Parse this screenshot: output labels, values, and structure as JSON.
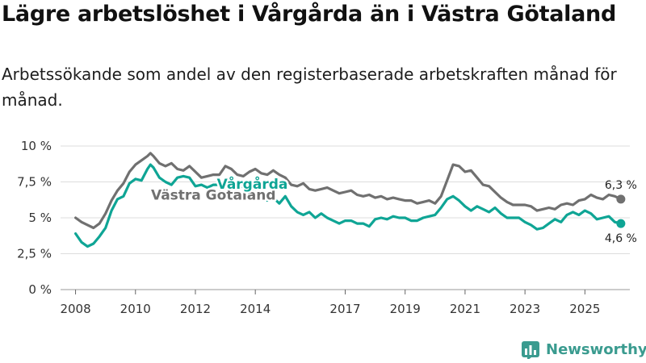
{
  "title": "Lägre arbetslöshet i Vårgårda än i Västra Götaland",
  "subtitle": "Arbetssökande som andel av den registerbaserade arbetskraften månad för månad.",
  "brand": "Newsworthy",
  "colors": {
    "vargarda": "#0fa595",
    "vastra_gotaland": "#707070",
    "grid": "#dddddd",
    "brand": "#3a9b8f"
  },
  "chart_data": {
    "type": "line",
    "unit": "%",
    "ylim": [
      0,
      10
    ],
    "yticks": [
      {
        "value": 0,
        "label": "0 %"
      },
      {
        "value": 2.5,
        "label": "2,5 %"
      },
      {
        "value": 5,
        "label": "5 %"
      },
      {
        "value": 7.5,
        "label": "7,5 %"
      },
      {
        "value": 10,
        "label": "10 %"
      }
    ],
    "xlim": [
      2007.5,
      2026.5
    ],
    "xticks": [
      2008,
      2010,
      2012,
      2014,
      2017,
      2019,
      2021,
      2023,
      2025
    ],
    "grid": true,
    "series": [
      {
        "name": "Västra Götaland",
        "color": "#707070",
        "end_label": "6,3 %",
        "label_at": [
          2012.6,
          6.6
        ],
        "points": [
          [
            2008.0,
            5.0
          ],
          [
            2008.2,
            4.7
          ],
          [
            2008.4,
            4.5
          ],
          [
            2008.6,
            4.3
          ],
          [
            2008.8,
            4.6
          ],
          [
            2009.0,
            5.3
          ],
          [
            2009.2,
            6.2
          ],
          [
            2009.4,
            6.9
          ],
          [
            2009.6,
            7.4
          ],
          [
            2009.8,
            8.2
          ],
          [
            2010.0,
            8.7
          ],
          [
            2010.2,
            9.0
          ],
          [
            2010.4,
            9.3
          ],
          [
            2010.5,
            9.5
          ],
          [
            2010.6,
            9.3
          ],
          [
            2010.8,
            8.8
          ],
          [
            2011.0,
            8.6
          ],
          [
            2011.2,
            8.8
          ],
          [
            2011.4,
            8.4
          ],
          [
            2011.6,
            8.3
          ],
          [
            2011.8,
            8.6
          ],
          [
            2012.0,
            8.2
          ],
          [
            2012.2,
            7.8
          ],
          [
            2012.4,
            7.9
          ],
          [
            2012.6,
            8.0
          ],
          [
            2012.8,
            8.0
          ],
          [
            2013.0,
            8.6
          ],
          [
            2013.2,
            8.4
          ],
          [
            2013.4,
            8.0
          ],
          [
            2013.6,
            7.9
          ],
          [
            2013.8,
            8.2
          ],
          [
            2014.0,
            8.4
          ],
          [
            2014.2,
            8.1
          ],
          [
            2014.4,
            8.0
          ],
          [
            2014.6,
            8.3
          ],
          [
            2014.8,
            8.0
          ],
          [
            2015.0,
            7.8
          ],
          [
            2015.2,
            7.3
          ],
          [
            2015.4,
            7.2
          ],
          [
            2015.6,
            7.4
          ],
          [
            2015.8,
            7.0
          ],
          [
            2016.0,
            6.9
          ],
          [
            2016.2,
            7.0
          ],
          [
            2016.4,
            7.1
          ],
          [
            2016.6,
            6.9
          ],
          [
            2016.8,
            6.7
          ],
          [
            2017.0,
            6.8
          ],
          [
            2017.2,
            6.9
          ],
          [
            2017.4,
            6.6
          ],
          [
            2017.6,
            6.5
          ],
          [
            2017.8,
            6.6
          ],
          [
            2018.0,
            6.4
          ],
          [
            2018.2,
            6.5
          ],
          [
            2018.4,
            6.3
          ],
          [
            2018.6,
            6.4
          ],
          [
            2018.8,
            6.3
          ],
          [
            2019.0,
            6.2
          ],
          [
            2019.2,
            6.2
          ],
          [
            2019.4,
            6.0
          ],
          [
            2019.6,
            6.1
          ],
          [
            2019.8,
            6.2
          ],
          [
            2020.0,
            6.0
          ],
          [
            2020.2,
            6.5
          ],
          [
            2020.4,
            7.6
          ],
          [
            2020.6,
            8.7
          ],
          [
            2020.8,
            8.6
          ],
          [
            2021.0,
            8.2
          ],
          [
            2021.2,
            8.3
          ],
          [
            2021.4,
            7.8
          ],
          [
            2021.6,
            7.3
          ],
          [
            2021.8,
            7.2
          ],
          [
            2022.0,
            6.8
          ],
          [
            2022.2,
            6.4
          ],
          [
            2022.4,
            6.1
          ],
          [
            2022.6,
            5.9
          ],
          [
            2022.8,
            5.9
          ],
          [
            2023.0,
            5.9
          ],
          [
            2023.2,
            5.8
          ],
          [
            2023.4,
            5.5
          ],
          [
            2023.6,
            5.6
          ],
          [
            2023.8,
            5.7
          ],
          [
            2024.0,
            5.6
          ],
          [
            2024.2,
            5.9
          ],
          [
            2024.4,
            6.0
          ],
          [
            2024.6,
            5.9
          ],
          [
            2024.8,
            6.2
          ],
          [
            2025.0,
            6.3
          ],
          [
            2025.2,
            6.6
          ],
          [
            2025.4,
            6.4
          ],
          [
            2025.6,
            6.3
          ],
          [
            2025.8,
            6.6
          ],
          [
            2026.0,
            6.5
          ],
          [
            2026.2,
            6.3
          ]
        ]
      },
      {
        "name": "Vårgårda",
        "color": "#0fa595",
        "end_label": "4,6 %",
        "label_at": [
          2013.9,
          7.35
        ],
        "points": [
          [
            2008.0,
            3.9
          ],
          [
            2008.2,
            3.3
          ],
          [
            2008.4,
            3.0
          ],
          [
            2008.6,
            3.2
          ],
          [
            2008.8,
            3.7
          ],
          [
            2009.0,
            4.3
          ],
          [
            2009.2,
            5.5
          ],
          [
            2009.4,
            6.3
          ],
          [
            2009.6,
            6.5
          ],
          [
            2009.8,
            7.4
          ],
          [
            2010.0,
            7.7
          ],
          [
            2010.2,
            7.6
          ],
          [
            2010.4,
            8.4
          ],
          [
            2010.5,
            8.7
          ],
          [
            2010.6,
            8.5
          ],
          [
            2010.8,
            7.8
          ],
          [
            2011.0,
            7.5
          ],
          [
            2011.2,
            7.3
          ],
          [
            2011.4,
            7.8
          ],
          [
            2011.6,
            7.9
          ],
          [
            2011.8,
            7.8
          ],
          [
            2012.0,
            7.2
          ],
          [
            2012.2,
            7.3
          ],
          [
            2012.4,
            7.1
          ],
          [
            2012.6,
            7.3
          ],
          [
            2012.8,
            7.3
          ],
          [
            2013.0,
            7.1
          ],
          [
            2013.2,
            7.1
          ],
          [
            2013.4,
            7.0
          ],
          [
            2013.6,
            7.1
          ],
          [
            2013.8,
            7.0
          ],
          [
            2014.0,
            7.0
          ],
          [
            2014.2,
            6.6
          ],
          [
            2014.4,
            6.2
          ],
          [
            2014.6,
            6.4
          ],
          [
            2014.8,
            6.0
          ],
          [
            2015.0,
            6.5
          ],
          [
            2015.2,
            5.8
          ],
          [
            2015.4,
            5.4
          ],
          [
            2015.6,
            5.2
          ],
          [
            2015.8,
            5.4
          ],
          [
            2016.0,
            5.0
          ],
          [
            2016.2,
            5.3
          ],
          [
            2016.4,
            5.0
          ],
          [
            2016.6,
            4.8
          ],
          [
            2016.8,
            4.6
          ],
          [
            2017.0,
            4.8
          ],
          [
            2017.2,
            4.8
          ],
          [
            2017.4,
            4.6
          ],
          [
            2017.6,
            4.6
          ],
          [
            2017.8,
            4.4
          ],
          [
            2018.0,
            4.9
          ],
          [
            2018.2,
            5.0
          ],
          [
            2018.4,
            4.9
          ],
          [
            2018.6,
            5.1
          ],
          [
            2018.8,
            5.0
          ],
          [
            2019.0,
            5.0
          ],
          [
            2019.2,
            4.8
          ],
          [
            2019.4,
            4.8
          ],
          [
            2019.6,
            5.0
          ],
          [
            2019.8,
            5.1
          ],
          [
            2020.0,
            5.2
          ],
          [
            2020.2,
            5.7
          ],
          [
            2020.4,
            6.3
          ],
          [
            2020.6,
            6.5
          ],
          [
            2020.8,
            6.2
          ],
          [
            2021.0,
            5.8
          ],
          [
            2021.2,
            5.5
          ],
          [
            2021.4,
            5.8
          ],
          [
            2021.6,
            5.6
          ],
          [
            2021.8,
            5.4
          ],
          [
            2022.0,
            5.7
          ],
          [
            2022.2,
            5.3
          ],
          [
            2022.4,
            5.0
          ],
          [
            2022.6,
            5.0
          ],
          [
            2022.8,
            5.0
          ],
          [
            2023.0,
            4.7
          ],
          [
            2023.2,
            4.5
          ],
          [
            2023.4,
            4.2
          ],
          [
            2023.6,
            4.3
          ],
          [
            2023.8,
            4.6
          ],
          [
            2024.0,
            4.9
          ],
          [
            2024.2,
            4.7
          ],
          [
            2024.4,
            5.2
          ],
          [
            2024.6,
            5.4
          ],
          [
            2024.8,
            5.2
          ],
          [
            2025.0,
            5.5
          ],
          [
            2025.2,
            5.3
          ],
          [
            2025.4,
            4.9
          ],
          [
            2025.6,
            5.0
          ],
          [
            2025.8,
            5.1
          ],
          [
            2026.0,
            4.7
          ],
          [
            2026.2,
            4.6
          ]
        ]
      }
    ]
  }
}
